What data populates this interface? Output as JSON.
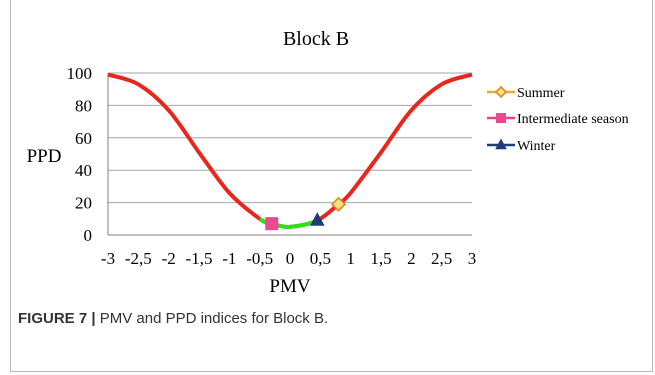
{
  "caption": {
    "label": "FIGURE 7 |",
    "text": " PMV and PPD indices for Block B."
  },
  "chart_data": {
    "type": "line",
    "title": "Block B",
    "xlabel": "PMV",
    "ylabel": "PPD",
    "xlim": [
      -3,
      3
    ],
    "ylim": [
      0,
      100
    ],
    "x_ticks": [
      -3,
      -2.5,
      -2,
      -1.5,
      -1,
      -0.5,
      0,
      0.5,
      1,
      1.5,
      2,
      2.5,
      3
    ],
    "x_tick_labels": [
      "-3",
      "-2,5",
      "-2",
      "-1,5",
      "-1",
      "-0,5",
      "0",
      "0,5",
      "1",
      "1,5",
      "2",
      "2,5",
      "3"
    ],
    "y_ticks": [
      0,
      20,
      40,
      60,
      80,
      100
    ],
    "y_tick_labels": [
      "0",
      "20",
      "40",
      "60",
      "80",
      "100"
    ],
    "grid": "horizontal",
    "legend_position": "right",
    "curve": {
      "x": [
        -3,
        -2.5,
        -2,
        -1.5,
        -1,
        -0.5,
        -0.3,
        0,
        0.45,
        0.8,
        1,
        1.5,
        2,
        2.5,
        3
      ],
      "y": [
        99,
        93,
        77,
        51,
        26,
        10,
        7,
        5,
        9,
        19,
        26,
        51,
        77,
        93,
        99
      ],
      "color": "#e8261e"
    },
    "comfort_segment": {
      "x_range": [
        -0.5,
        0.5
      ],
      "color": "#33dd22"
    },
    "series": [
      {
        "name": "Summer",
        "x": 0.8,
        "y": 19,
        "marker": "diamond",
        "color": "#f0a830",
        "fill": "#fbe08a",
        "stroke": "#d98a1a"
      },
      {
        "name": "Intermediate season",
        "x": -0.3,
        "y": 7,
        "marker": "square",
        "color": "#e8408a",
        "fill": "#ea4a90",
        "stroke": "#ea4a90"
      },
      {
        "name": "Winter",
        "x": 0.45,
        "y": 9,
        "marker": "triangle",
        "color": "#1f3c78",
        "fill": "#1f3c78",
        "stroke": "#1f3c78"
      }
    ]
  }
}
